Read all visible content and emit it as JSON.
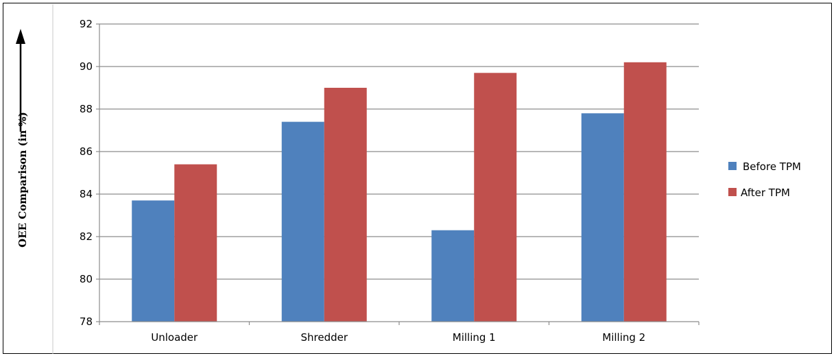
{
  "chart_data": {
    "type": "bar",
    "title": "",
    "xlabel": "",
    "ylabel": "OEE Comparison (in %)",
    "categories": [
      "Unloader",
      "Shredder",
      "Milling 1",
      "Milling 2"
    ],
    "series": [
      {
        "name": "Before TPM",
        "values": [
          83.7,
          87.4,
          82.3,
          87.8
        ],
        "color": "#4f81bd"
      },
      {
        "name": "After TPM",
        "values": [
          85.4,
          89.0,
          89.7,
          90.2
        ],
        "color": "#c0504d"
      }
    ],
    "ylim": [
      78,
      92
    ],
    "yticks": [
      78,
      80,
      82,
      84,
      86,
      88,
      90,
      92
    ],
    "grid": true,
    "legend_position": "right",
    "ylabel_arrow": "up"
  }
}
